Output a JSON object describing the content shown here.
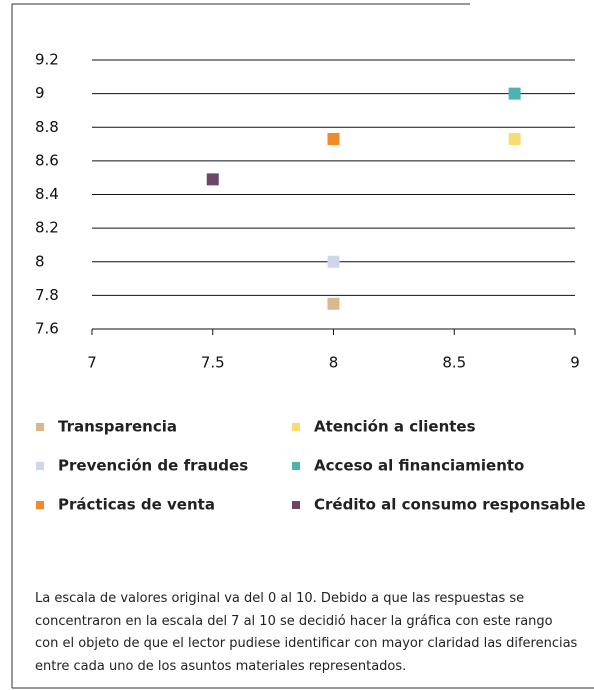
{
  "chart_data": {
    "type": "scatter",
    "xlim": [
      7,
      9
    ],
    "xticks": [
      7,
      7.5,
      8,
      8.5,
      9
    ],
    "ylim": [
      7.6,
      9.2
    ],
    "yticks": [
      7.6,
      7.8,
      8,
      8.2,
      8.4,
      8.6,
      8.8,
      9,
      9.2
    ],
    "grid": true,
    "series": [
      {
        "name": "Transparencia",
        "color": "#d8b98a",
        "x": [
          8
        ],
        "values": [
          7.75
        ]
      },
      {
        "name": "Atención a clientes",
        "color": "#f8dc72",
        "x": [
          8.75
        ],
        "values": [
          8.73
        ]
      },
      {
        "name": "Prevención de fraudes",
        "color": "#cdd7e8",
        "x": [
          8
        ],
        "values": [
          8
        ]
      },
      {
        "name": "Acceso al financiamiento",
        "color": "#4db3b0",
        "x": [
          8.75
        ],
        "values": [
          9
        ]
      },
      {
        "name": "Prácticas de venta",
        "color": "#f28a26",
        "x": [
          8
        ],
        "values": [
          8.73
        ]
      },
      {
        "name": "Crédito al consumo responsable",
        "color": "#6b4768",
        "x": [
          7.5
        ],
        "values": [
          8.49
        ]
      }
    ],
    "note": "La escala de valores original va del 0 al 10. Debido a que las respuestas se concentraron en la escala del 7 al 10 se decidió hacer la gráfica con este rango con el objeto de que el lector pudiese identificar con mayor claridad las diferencias entre cada uno de los asuntos materiales representados."
  }
}
